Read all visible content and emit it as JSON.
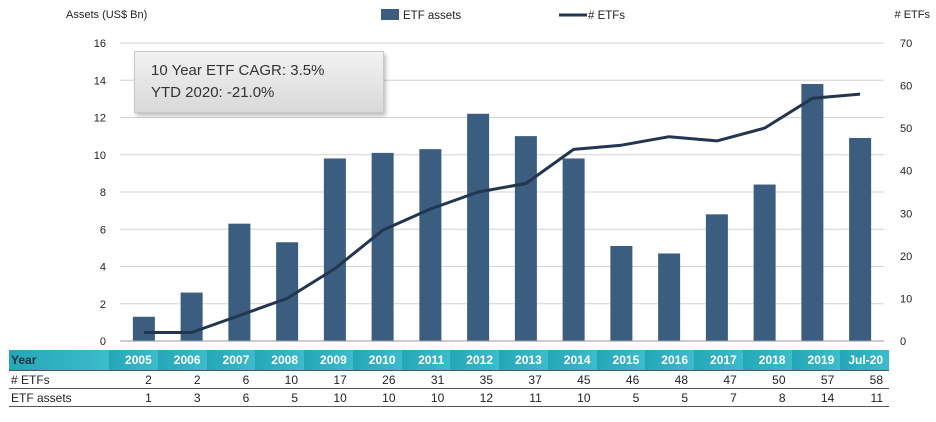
{
  "chart_data": {
    "type": "bar",
    "categories": [
      "2005",
      "2006",
      "2007",
      "2008",
      "2009",
      "2010",
      "2011",
      "2012",
      "2013",
      "2014",
      "2015",
      "2016",
      "2017",
      "2018",
      "2019",
      "Jul-20"
    ],
    "ylabel_left": "Assets (US$ Bn)",
    "ylabel_right": "# ETFs",
    "ylim_left": [
      0,
      16
    ],
    "yticks_left": [
      0,
      2,
      4,
      6,
      8,
      10,
      12,
      14,
      16
    ],
    "ylim_right": [
      0,
      70
    ],
    "yticks_right": [
      0,
      10,
      20,
      30,
      40,
      50,
      60,
      70
    ],
    "grid": true,
    "legend_position": "top",
    "series": [
      {
        "name": "ETF assets",
        "type": "bar",
        "axis": "left",
        "color": "#3a5d80",
        "values": [
          1.3,
          2.6,
          6.3,
          5.3,
          9.8,
          10.1,
          10.3,
          12.2,
          11.0,
          9.8,
          5.1,
          4.7,
          6.8,
          8.4,
          13.8,
          10.9
        ]
      },
      {
        "name": "# ETFs",
        "type": "line",
        "axis": "right",
        "color": "#22364f",
        "values": [
          2,
          2,
          6,
          10,
          17,
          26,
          31,
          35,
          37,
          45,
          46,
          48,
          47,
          50,
          57,
          58
        ]
      }
    ]
  },
  "annotation": {
    "line1": "10 Year ETF CAGR: 3.5%",
    "line2": "YTD 2020: -21.0%"
  },
  "table": {
    "header_label": "Year",
    "years": [
      "2005",
      "2006",
      "2007",
      "2008",
      "2009",
      "2010",
      "2011",
      "2012",
      "2013",
      "2014",
      "2015",
      "2016",
      "2017",
      "2018",
      "2019",
      "Jul-20"
    ],
    "rows": [
      {
        "label": "# ETFs",
        "values": [
          "2",
          "2",
          "6",
          "10",
          "17",
          "26",
          "31",
          "35",
          "37",
          "45",
          "46",
          "48",
          "47",
          "50",
          "57",
          "58"
        ]
      },
      {
        "label": "ETF assets",
        "values": [
          "1",
          "3",
          "6",
          "5",
          "10",
          "10",
          "10",
          "12",
          "11",
          "10",
          "5",
          "5",
          "7",
          "8",
          "14",
          "11"
        ]
      }
    ]
  }
}
